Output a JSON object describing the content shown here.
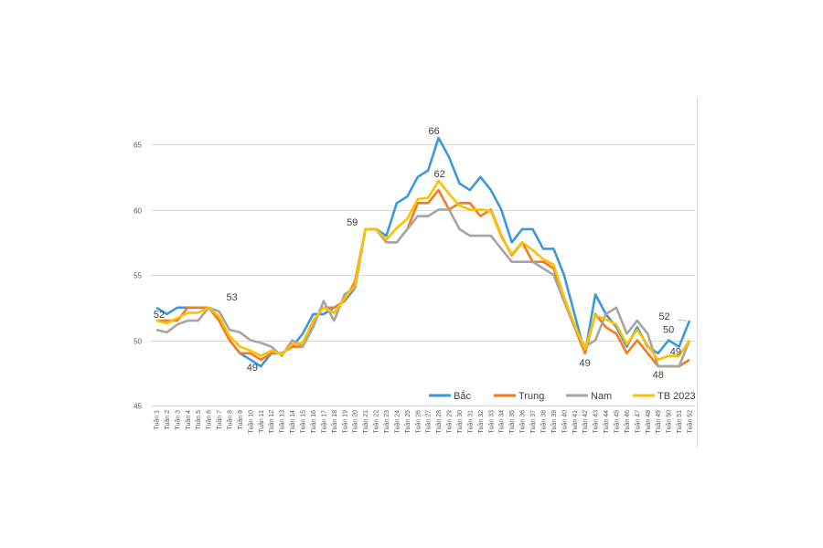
{
  "chart_data": {
    "type": "line",
    "title": "",
    "xlabel": "",
    "ylabel": "",
    "ylim": [
      45,
      65
    ],
    "yticks": [
      45,
      50,
      55,
      60,
      65
    ],
    "grid": true,
    "legend_position": "bottom-inside",
    "categories": [
      "Tuần 1",
      "Tuần 2",
      "Tuần 3",
      "Tuần 4",
      "Tuần 5",
      "Tuần 6",
      "Tuần 7",
      "Tuần 8",
      "Tuần 9",
      "Tuần 10",
      "Tuần 11",
      "Tuần 12",
      "Tuần 13",
      "Tuần 14",
      "Tuần 15",
      "Tuần 16",
      "Tuần 17",
      "Tuần 18",
      "Tuần 19",
      "Tuần 20",
      "Tuần 21",
      "Tuần 22",
      "Tuần 23",
      "Tuần 24",
      "Tuần 25",
      "Tuần 26",
      "Tuần 27",
      "Tuần 28",
      "Tuần 29",
      "Tuần 30",
      "Tuần 31",
      "Tuần 32",
      "Tuần 33",
      "Tuần 34",
      "Tuần 35",
      "Tuần 36",
      "Tuần 37",
      "Tuần 38",
      "Tuần 39",
      "Tuần 40",
      "Tuần 41",
      "Tuần 42",
      "Tuần 43",
      "Tuần 44",
      "Tuần 45",
      "Tuần 46",
      "Tuần 47",
      "Tuần 48",
      "Tuần 49",
      "Tuần 50",
      "Tuần 51",
      "Tuần 52"
    ],
    "series": [
      {
        "name": "Bắc",
        "color": "#3a9ad9",
        "values": [
          52.5,
          52,
          52.5,
          52.5,
          52.5,
          52.5,
          51.5,
          50,
          49,
          48.5,
          48,
          49,
          49,
          49.5,
          50.5,
          52,
          52,
          52.5,
          53,
          54,
          58.5,
          58.5,
          58,
          60.5,
          61,
          62.5,
          63,
          65.5,
          64,
          62,
          61.5,
          62.5,
          61.5,
          60,
          57.5,
          58.5,
          58.5,
          57,
          57,
          55,
          52,
          49,
          53.5,
          52,
          51,
          49.5,
          51,
          49.5,
          49,
          50,
          49.5,
          51.5
        ]
      },
      {
        "name": "Trung",
        "color": "#f47b20",
        "values": [
          51.5,
          51.5,
          51.5,
          52.5,
          52.5,
          52.5,
          51.5,
          50,
          49,
          49,
          48.5,
          49,
          49,
          49.5,
          49.5,
          51.5,
          52.5,
          52.5,
          53,
          54.5,
          58.5,
          58.5,
          57.5,
          57.5,
          58.5,
          60.5,
          60.5,
          61.5,
          60,
          60.5,
          60.5,
          59.5,
          60,
          58,
          56.5,
          57.5,
          56,
          56,
          55.5,
          53,
          51,
          49,
          52,
          51,
          50.5,
          49,
          50,
          49,
          48,
          48,
          48,
          48.5
        ]
      },
      {
        "name": "Nam",
        "color": "#a5a5a5",
        "values": [
          50.8,
          50.6,
          51.2,
          51.5,
          51.5,
          52.5,
          52.2,
          50.8,
          50.6,
          50,
          49.8,
          49.5,
          48.8,
          50,
          49.5,
          51,
          53,
          51.5,
          53.5,
          54,
          58.5,
          58.5,
          57.5,
          57.5,
          58.5,
          59.5,
          59.5,
          60,
          60,
          58.5,
          58,
          58,
          58,
          57,
          56,
          56,
          56,
          55.5,
          55,
          53,
          51,
          49.5,
          50,
          52,
          52.5,
          50.5,
          51.5,
          50.5,
          48,
          48,
          48,
          50
        ]
      },
      {
        "name": "TB 2023",
        "color": "#ffc000",
        "values": [
          51.5,
          51.3,
          51.7,
          52.1,
          52.1,
          52.5,
          51.8,
          50.3,
          49.5,
          49.2,
          48.8,
          49.2,
          48.9,
          49.7,
          49.8,
          51.5,
          52.5,
          52.1,
          53.2,
          54.2,
          58.5,
          58.5,
          57.7,
          58.6,
          59.3,
          60.8,
          60.9,
          62.2,
          61.2,
          60.3,
          60,
          60,
          59.9,
          57.9,
          56.6,
          57.5,
          56.9,
          56.2,
          55.8,
          53.3,
          51.2,
          49.3,
          51.9,
          51.6,
          51.2,
          49.7,
          50.8,
          49.6,
          48.5,
          48.8,
          48.8,
          50
        ]
      }
    ],
    "data_labels": [
      {
        "text": "52",
        "week": 1,
        "value": 51.5
      },
      {
        "text": "53",
        "week": 7,
        "value": 52.5
      },
      {
        "text": "49",
        "week": 10,
        "value": 48.5
      },
      {
        "text": "59",
        "week": 20,
        "value": 58.5
      },
      {
        "text": "66",
        "week": 28,
        "value": 65.5
      },
      {
        "text": "62",
        "week": 28,
        "value": 62.2
      },
      {
        "text": "49",
        "week": 42,
        "value": 49
      },
      {
        "text": "48",
        "week": 49,
        "value": 48
      },
      {
        "text": "50",
        "week": 50,
        "value": 50
      },
      {
        "text": "49",
        "week": 50.5,
        "value": 48.8
      },
      {
        "text": "52",
        "week": 51,
        "value": 51.5
      }
    ]
  }
}
